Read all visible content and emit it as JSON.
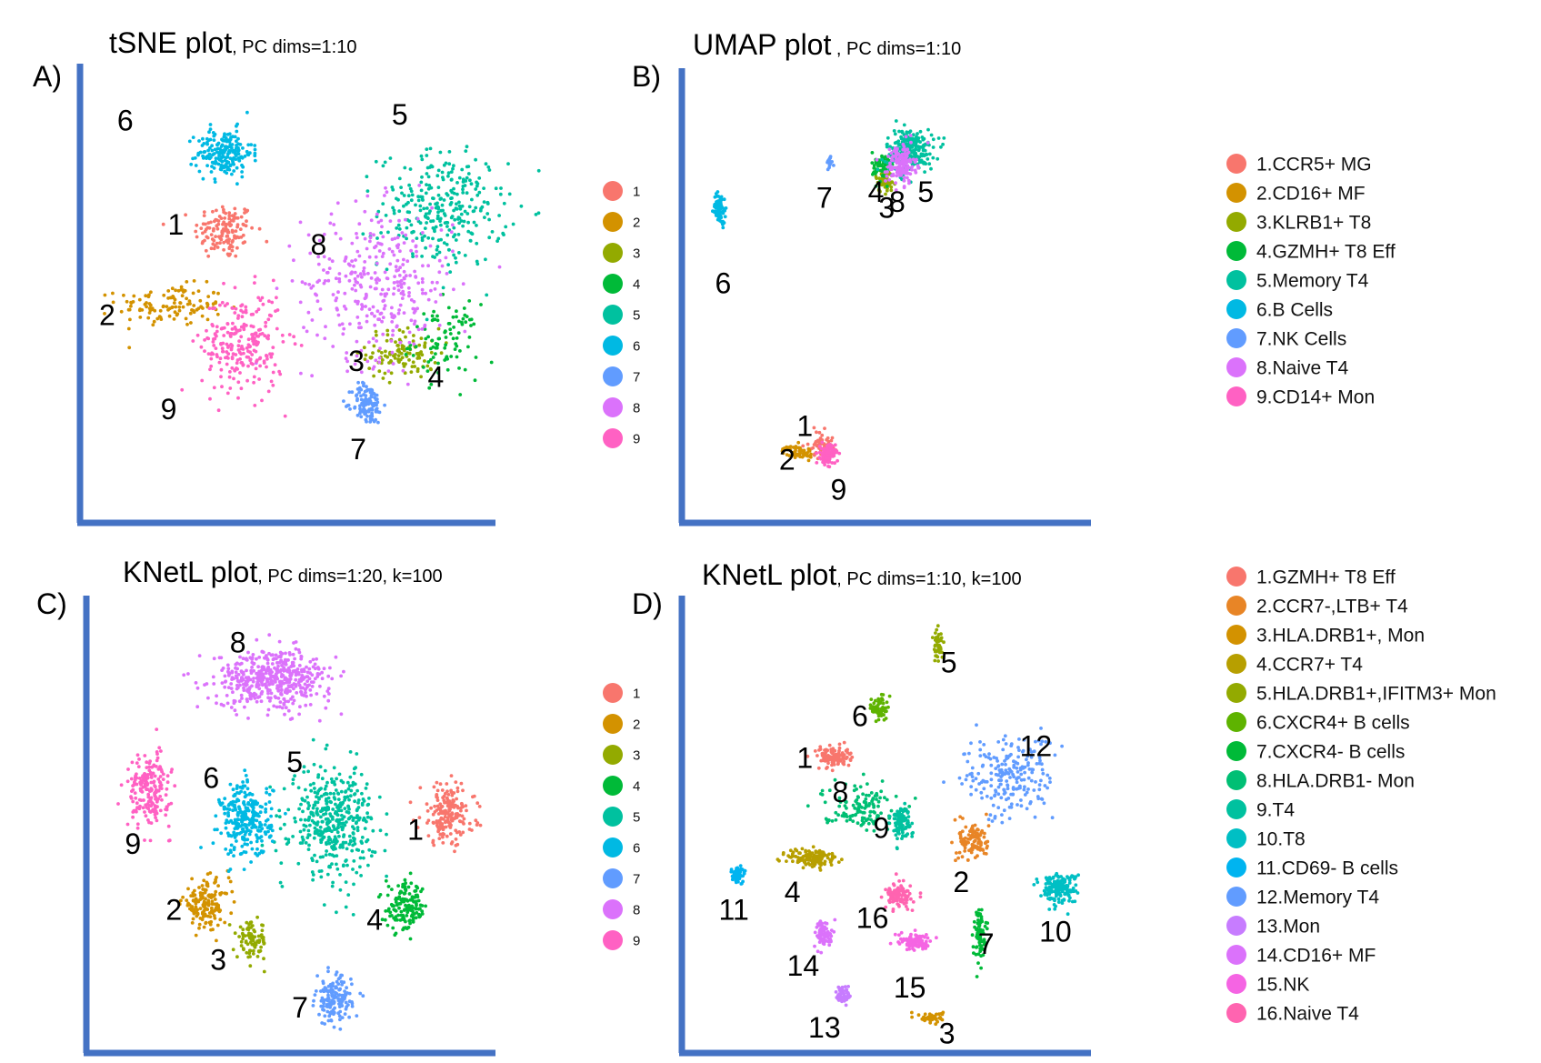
{
  "chart_data": [
    {
      "type": "scatter",
      "panel": "A)",
      "title": "tSNE plot",
      "subtitle": ", PC dims=1:10",
      "legend": {
        "placement": "right",
        "entries": [
          "1",
          "2",
          "3",
          "4",
          "5",
          "6",
          "7",
          "8",
          "9"
        ],
        "colors": [
          "#F8766D",
          "#D39200",
          "#93AA00",
          "#00BA38",
          "#00C19F",
          "#00B9E3",
          "#619CFF",
          "#DB72FB",
          "#FF61C3"
        ]
      },
      "clusters": [
        {
          "label": "1",
          "center": [
            -0.3,
            0.31
          ],
          "spread": [
            0.2,
            0.17
          ],
          "n": 140,
          "color": "#F8766D"
        },
        {
          "label": "2",
          "center": [
            -0.6,
            -0.06
          ],
          "spread": [
            0.35,
            0.12
          ],
          "n": 120,
          "color": "#D39200"
        },
        {
          "label": "3",
          "center": [
            0.69,
            -0.3
          ],
          "spread": [
            0.24,
            0.15
          ],
          "n": 110,
          "color": "#93AA00"
        },
        {
          "label": "4",
          "center": [
            0.92,
            -0.24
          ],
          "spread": [
            0.22,
            0.22
          ],
          "n": 90,
          "color": "#00BA38"
        },
        {
          "label": "5",
          "center": [
            0.91,
            0.42
          ],
          "spread": [
            0.42,
            0.34
          ],
          "n": 300,
          "color": "#00C19F"
        },
        {
          "label": "6",
          "center": [
            -0.3,
            0.7
          ],
          "spread": [
            0.18,
            0.14
          ],
          "n": 200,
          "color": "#00B9E3"
        },
        {
          "label": "7",
          "center": [
            0.49,
            -0.55
          ],
          "spread": [
            0.1,
            0.12
          ],
          "n": 120,
          "color": "#619CFF"
        },
        {
          "label": "8",
          "center": [
            0.55,
            0.05
          ],
          "spread": [
            0.5,
            0.45
          ],
          "n": 340,
          "color": "#DB72FB"
        },
        {
          "label": "9",
          "center": [
            -0.2,
            -0.25
          ],
          "spread": [
            0.27,
            0.3
          ],
          "n": 250,
          "color": "#FF61C3"
        }
      ],
      "cluster_labels": [
        {
          "text": "1",
          "at": [
            -0.57,
            0.33
          ]
        },
        {
          "text": "2",
          "at": [
            -0.95,
            -0.12
          ]
        },
        {
          "text": "3",
          "at": [
            0.43,
            -0.35
          ]
        },
        {
          "text": "4",
          "at": [
            0.87,
            -0.43
          ]
        },
        {
          "text": "5",
          "at": [
            0.67,
            0.88
          ]
        },
        {
          "text": "6",
          "at": [
            -0.85,
            0.85
          ]
        },
        {
          "text": "7",
          "at": [
            0.44,
            -0.79
          ]
        },
        {
          "text": "8",
          "at": [
            0.22,
            0.23
          ]
        },
        {
          "text": "9",
          "at": [
            -0.61,
            -0.59
          ]
        }
      ]
    },
    {
      "type": "scatter",
      "panel": "B)",
      "title": "UMAP plot",
      "subtitle": " , PC dims=1:10",
      "legend": {
        "placement": "right",
        "entries": [
          "1.CCR5+ MG",
          "2.CD16+ MF",
          "3.KLRB1+ T8",
          "4.GZMH+ T8 Eff",
          "5.Memory T4",
          "6.B Cells",
          "7.NK Cells",
          "8.Naive T4",
          "9.CD14+ Mon"
        ],
        "colors": [
          "#F8766D",
          "#D39200",
          "#93AA00",
          "#00BA38",
          "#00C19F",
          "#00B9E3",
          "#619CFF",
          "#DB72FB",
          "#FF61C3"
        ]
      },
      "clusters": [
        {
          "label": "1",
          "center": [
            0.48,
            -0.75
          ],
          "spread": [
            0.08,
            0.08
          ],
          "n": 60,
          "color": "#F8766D"
        },
        {
          "label": "2",
          "center": [
            0.35,
            -0.79
          ],
          "spread": [
            0.1,
            0.04
          ],
          "n": 60,
          "color": "#D39200"
        },
        {
          "label": "3",
          "center": [
            0.84,
            0.58
          ],
          "spread": [
            0.06,
            0.07
          ],
          "n": 60,
          "color": "#93AA00"
        },
        {
          "label": "4",
          "center": [
            0.82,
            0.65
          ],
          "spread": [
            0.06,
            0.09
          ],
          "n": 60,
          "color": "#00BA38"
        },
        {
          "label": "5",
          "center": [
            0.98,
            0.73
          ],
          "spread": [
            0.16,
            0.13
          ],
          "n": 240,
          "color": "#00C19F"
        },
        {
          "label": "6",
          "center": [
            -0.09,
            0.44
          ],
          "spread": [
            0.04,
            0.09
          ],
          "n": 80,
          "color": "#00B9E3"
        },
        {
          "label": "7",
          "center": [
            0.53,
            0.67
          ],
          "spread": [
            0.02,
            0.04
          ],
          "n": 20,
          "color": "#619CFF"
        },
        {
          "label": "8",
          "center": [
            0.93,
            0.66
          ],
          "spread": [
            0.1,
            0.12
          ],
          "n": 150,
          "color": "#DB72FB"
        },
        {
          "label": "9",
          "center": [
            0.52,
            -0.8
          ],
          "spread": [
            0.05,
            0.06
          ],
          "n": 120,
          "color": "#FF61C3"
        }
      ],
      "cluster_labels": [
        {
          "text": "1",
          "at": [
            0.39,
            -0.67
          ]
        },
        {
          "text": "2",
          "at": [
            0.29,
            -0.84
          ]
        },
        {
          "text": "3",
          "at": [
            0.85,
            0.43
          ]
        },
        {
          "text": "4",
          "at": [
            0.79,
            0.51
          ]
        },
        {
          "text": "5",
          "at": [
            1.07,
            0.51
          ]
        },
        {
          "text": "6",
          "at": [
            -0.07,
            0.05
          ]
        },
        {
          "text": "7",
          "at": [
            0.5,
            0.48
          ]
        },
        {
          "text": "8",
          "at": [
            0.91,
            0.46
          ]
        },
        {
          "text": "9",
          "at": [
            0.58,
            -0.99
          ]
        }
      ]
    },
    {
      "type": "scatter",
      "panel": "C)",
      "title": "KNetL plot",
      "subtitle": ", PC dims=1:20, k=100",
      "legend": {
        "placement": "right",
        "entries": [
          "1",
          "2",
          "3",
          "4",
          "5",
          "6",
          "7",
          "8",
          "9"
        ],
        "colors": [
          "#F8766D",
          "#D39200",
          "#93AA00",
          "#00BA38",
          "#00C19F",
          "#00B9E3",
          "#619CFF",
          "#DB72FB",
          "#FF61C3"
        ]
      },
      "clusters": [
        {
          "label": "1",
          "center": [
            1.53,
            0.05
          ],
          "spread": [
            0.18,
            0.18
          ],
          "n": 190,
          "color": "#F8766D"
        },
        {
          "label": "2",
          "center": [
            0.17,
            -0.4
          ],
          "spread": [
            0.16,
            0.14
          ],
          "n": 150,
          "color": "#D39200"
        },
        {
          "label": "3",
          "center": [
            0.43,
            -0.58
          ],
          "spread": [
            0.1,
            0.11
          ],
          "n": 90,
          "color": "#93AA00"
        },
        {
          "label": "4",
          "center": [
            1.3,
            -0.42
          ],
          "spread": [
            0.14,
            0.14
          ],
          "n": 150,
          "color": "#00BA38"
        },
        {
          "label": "5",
          "center": [
            0.88,
            0.02
          ],
          "spread": [
            0.28,
            0.32
          ],
          "n": 420,
          "color": "#00C19F"
        },
        {
          "label": "6",
          "center": [
            0.4,
            0.02
          ],
          "spread": [
            0.17,
            0.22
          ],
          "n": 280,
          "color": "#00B9E3"
        },
        {
          "label": "7",
          "center": [
            0.89,
            -0.88
          ],
          "spread": [
            0.12,
            0.14
          ],
          "n": 150,
          "color": "#619CFF"
        },
        {
          "label": "8",
          "center": [
            0.55,
            0.73
          ],
          "spread": [
            0.39,
            0.17
          ],
          "n": 480,
          "color": "#DB72FB"
        },
        {
          "label": "9",
          "center": [
            -0.15,
            0.17
          ],
          "spread": [
            0.14,
            0.22
          ],
          "n": 200,
          "color": "#FF61C3"
        }
      ],
      "cluster_labels": [
        {
          "text": "1",
          "at": [
            1.35,
            -0.04
          ]
        },
        {
          "text": "2",
          "at": [
            -0.01,
            -0.44
          ]
        },
        {
          "text": "3",
          "at": [
            0.24,
            -0.69
          ]
        },
        {
          "text": "4",
          "at": [
            1.12,
            -0.49
          ]
        },
        {
          "text": "5",
          "at": [
            0.67,
            0.3
          ]
        },
        {
          "text": "6",
          "at": [
            0.2,
            0.22
          ]
        },
        {
          "text": "7",
          "at": [
            0.7,
            -0.93
          ]
        },
        {
          "text": "8",
          "at": [
            0.35,
            0.9
          ]
        },
        {
          "text": "9",
          "at": [
            -0.24,
            -0.11
          ]
        }
      ]
    },
    {
      "type": "scatter",
      "panel": "D)",
      "title": "KNetL plot",
      "subtitle": ", PC dims=1:10, k=100",
      "legend": {
        "placement": "right",
        "entries": [
          "1.GZMH+ T8 Eff",
          "2.CCR7-,LTB+ T4",
          "3.HLA.DRB1+, Mon",
          "4.CCR7+ T4",
          "5.HLA.DRB1+,IFITM3+ Mon",
          "6.CXCR4+ B cells",
          "7.CXCR4- B cells",
          "8.HLA.DRB1- Mon",
          "9.T4",
          "10.T8",
          "11.CD69- B cells",
          "12.Memory T4",
          "13.Mon",
          "14.CD16+ MF",
          "15.NK",
          "16.Naive T4"
        ],
        "colors": [
          "#F8766D",
          "#E88526",
          "#D39200",
          "#B79F00",
          "#93AA00",
          "#5EB300",
          "#00BA38",
          "#00BF74",
          "#00C19F",
          "#00BFC4",
          "#00B4F0",
          "#619CFF",
          "#C77CFF",
          "#DB72FB",
          "#F564E3",
          "#FF64B0"
        ]
      },
      "clusters": [
        {
          "label": "1",
          "center": [
            0.35,
            0.34
          ],
          "spread": [
            0.11,
            0.06
          ],
          "n": 110,
          "color": "#F8766D"
        },
        {
          "label": "2",
          "center": [
            1.14,
            -0.08
          ],
          "spread": [
            0.1,
            0.12
          ],
          "n": 110,
          "color": "#E88526"
        },
        {
          "label": "3",
          "center": [
            0.9,
            -0.97
          ],
          "spread": [
            0.08,
            0.03
          ],
          "n": 50,
          "color": "#D39200"
        },
        {
          "label": "4",
          "center": [
            0.24,
            -0.17
          ],
          "spread": [
            0.17,
            0.06
          ],
          "n": 140,
          "color": "#B79F00"
        },
        {
          "label": "5",
          "center": [
            0.94,
            0.9
          ],
          "spread": [
            0.03,
            0.1
          ],
          "n": 50,
          "color": "#93AA00"
        },
        {
          "label": "6",
          "center": [
            0.61,
            0.58
          ],
          "spread": [
            0.05,
            0.08
          ],
          "n": 60,
          "color": "#5EB300"
        },
        {
          "label": "7",
          "center": [
            1.17,
            -0.54
          ],
          "spread": [
            0.04,
            0.15
          ],
          "n": 70,
          "color": "#00BA38"
        },
        {
          "label": "8",
          "center": [
            0.5,
            0.09
          ],
          "spread": [
            0.25,
            0.13
          ],
          "n": 130,
          "color": "#00BF74"
        },
        {
          "label": "9",
          "center": [
            0.73,
            0.01
          ],
          "spread": [
            0.07,
            0.1
          ],
          "n": 100,
          "color": "#00C19F"
        },
        {
          "label": "10",
          "center": [
            1.62,
            -0.32
          ],
          "spread": [
            0.12,
            0.09
          ],
          "n": 170,
          "color": "#00BFC4"
        },
        {
          "label": "11",
          "center": [
            -0.19,
            -0.25
          ],
          "spread": [
            0.05,
            0.05
          ],
          "n": 60,
          "color": "#00B4F0"
        },
        {
          "label": "12",
          "center": [
            1.34,
            0.23
          ],
          "spread": [
            0.3,
            0.25
          ],
          "n": 220,
          "color": "#619CFF"
        },
        {
          "label": "13",
          "center": [
            0.41,
            -0.85
          ],
          "spread": [
            0.05,
            0.06
          ],
          "n": 60,
          "color": "#C77CFF"
        },
        {
          "label": "14",
          "center": [
            0.3,
            -0.55
          ],
          "spread": [
            0.06,
            0.08
          ],
          "n": 80,
          "color": "#DB72FB"
        },
        {
          "label": "15",
          "center": [
            0.81,
            -0.59
          ],
          "spread": [
            0.11,
            0.05
          ],
          "n": 100,
          "color": "#F564E3"
        },
        {
          "label": "16",
          "center": [
            0.72,
            -0.36
          ],
          "spread": [
            0.09,
            0.07
          ],
          "n": 110,
          "color": "#FF64B0"
        }
      ],
      "cluster_labels": [
        {
          "text": "1",
          "at": [
            0.19,
            0.32
          ]
        },
        {
          "text": "2",
          "at": [
            1.07,
            -0.3
          ]
        },
        {
          "text": "3",
          "at": [
            0.99,
            -1.06
          ]
        },
        {
          "text": "4",
          "at": [
            0.12,
            -0.35
          ]
        },
        {
          "text": "5",
          "at": [
            1.0,
            0.8
          ]
        },
        {
          "text": "6",
          "at": [
            0.5,
            0.53
          ]
        },
        {
          "text": "7",
          "at": [
            1.21,
            -0.61
          ]
        },
        {
          "text": "8",
          "at": [
            0.39,
            0.15
          ]
        },
        {
          "text": "9",
          "at": [
            0.62,
            -0.03
          ]
        },
        {
          "text": "10",
          "at": [
            1.6,
            -0.55
          ]
        },
        {
          "text": "11",
          "at": [
            -0.21,
            -0.44
          ]
        },
        {
          "text": "12",
          "at": [
            1.49,
            0.38
          ]
        },
        {
          "text": "13",
          "at": [
            0.3,
            -1.03
          ]
        },
        {
          "text": "14",
          "at": [
            0.18,
            -0.72
          ]
        },
        {
          "text": "15",
          "at": [
            0.78,
            -0.83
          ]
        },
        {
          "text": "16",
          "at": [
            0.57,
            -0.48
          ]
        }
      ]
    }
  ]
}
